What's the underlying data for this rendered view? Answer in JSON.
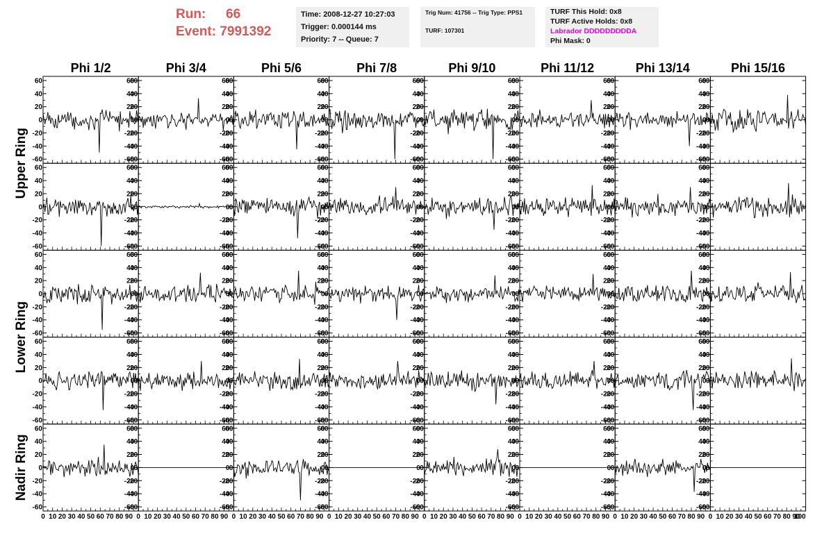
{
  "header": {
    "run_label": "Run:",
    "run_value": "66",
    "event_label": "Event:",
    "event_value": "7991392",
    "time": "Time: 2008-12-27 10:27:03",
    "trigger": "Trigger: 0.000144 ms",
    "priority": "Priority: 7 -- Queue: 7",
    "trig_num": "Trig Num: 41756 -- Trig Type: PPS1",
    "turf": "TURF: 107301",
    "turf_hold": "TURF This Hold: 0x8",
    "turf_active": "TURF Active Holds: 0x8",
    "labrador": "Labrador DDDDDDDDDA",
    "phi_mask": "Phi Mask: 0"
  },
  "colors": {
    "header_red": "#cd5c5c",
    "labrador_magenta": "#e600e6",
    "trace": "#000000",
    "info_bg": "#f0f0f0"
  },
  "chart_data": {
    "type": "line",
    "title": "",
    "columns": [
      "Phi 1/2",
      "Phi 3/4",
      "Phi 5/6",
      "Phi 7/8",
      "Phi 9/10",
      "Phi 11/12",
      "Phi 13/14",
      "Phi 15/16"
    ],
    "rows": [
      "Upper Ring",
      "Upper Ring",
      "Lower Ring",
      "Lower Ring",
      "Nadir Ring"
    ],
    "row_labels": [
      {
        "text": "Upper Ring",
        "spans": [
          0,
          1
        ]
      },
      {
        "text": "Lower Ring",
        "spans": [
          2,
          3
        ]
      },
      {
        "text": "Nadir Ring",
        "spans": [
          4,
          4
        ]
      }
    ],
    "xlim": [
      0,
      100
    ],
    "ylim": [
      -60,
      60
    ],
    "x_ticks": [
      "0",
      "10",
      "20",
      "30",
      "40",
      "50",
      "60",
      "70",
      "80",
      "90",
      "100"
    ],
    "y_ticks": [
      "60",
      "40",
      "20",
      "0",
      "-20",
      "-40",
      "-60"
    ],
    "grid": false,
    "samples_per_trace": 100,
    "amplitude": [
      [
        15,
        13,
        15,
        15,
        18,
        12,
        13,
        17
      ],
      [
        14,
        2,
        16,
        15,
        15,
        15,
        15,
        16
      ],
      [
        15,
        14,
        14,
        13,
        12,
        12,
        16,
        16
      ],
      [
        14,
        14,
        14,
        14,
        13,
        14,
        14,
        14
      ],
      [
        15,
        0,
        14,
        0,
        14,
        0,
        13,
        0
      ]
    ],
    "peak": [
      [
        -50,
        33,
        -45,
        -60,
        -60,
        30,
        -40,
        38
      ],
      [
        -60,
        5,
        -48,
        30,
        -35,
        33,
        30,
        36
      ],
      [
        -55,
        32,
        35,
        -40,
        28,
        30,
        35,
        33
      ],
      [
        -45,
        30,
        33,
        30,
        -36,
        30,
        -45,
        34
      ],
      [
        35,
        0,
        -50,
        0,
        28,
        0,
        -37,
        0
      ]
    ]
  }
}
